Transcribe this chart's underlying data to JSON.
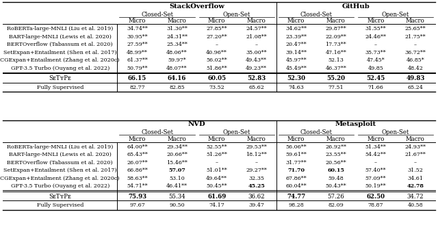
{
  "title1": "StackOverflow",
  "title2": "GitHub",
  "title3": "NVD",
  "title4": "Metasploit",
  "row_labels": [
    "RoBERTa-large-MNLI (Liu et al. 2019)",
    "BART-large-MNLI (Lewis et al. 2020)",
    "BERTOverflow (Tabassum et al. 2020)",
    "SetExpan+Entailment (Shen et al. 2017)",
    "CGExpan+Entailment (Zhang et al. 2020c)",
    "GPT-3.5 Turbo (Ouyang et al. 2022)"
  ],
  "table1_data": [
    [
      "34.74**",
      "31.30**",
      "27.85**",
      "24.57**",
      "34.62**",
      "29.87**",
      "31.55**",
      "25.65**"
    ],
    [
      "30.95**",
      "24.31**",
      "27.20**",
      "21.08**",
      "23.39**",
      "22.09**",
      "24.46**",
      "21.75**"
    ],
    [
      "27.59**",
      "25.34**",
      "–",
      "–",
      "20.47**",
      "17.73**",
      "–",
      "–"
    ],
    [
      "48.99**",
      "48.06**",
      "40.96**",
      "35.00**",
      "39.14**",
      "47.16**",
      "35.73**",
      "36.72**"
    ],
    [
      "61.37**",
      "59.97*",
      "56.02**",
      "49.43**",
      "45.97**",
      "52.13",
      "47.45*",
      "46.85*"
    ],
    [
      "50.79**",
      "48.07**",
      "51.86**",
      "49.23**",
      "45.49**",
      "46.37**",
      "49.85",
      "48.42"
    ]
  ],
  "table1_setype": [
    "66.15",
    "64.16",
    "60.05",
    "52.83",
    "52.30",
    "55.20",
    "52.45",
    "49.83"
  ],
  "table1_fullysup": [
    "82.77",
    "82.85",
    "73.52",
    "65.62",
    "74.63",
    "77.51",
    "71.66",
    "65.24"
  ],
  "table2_data": [
    [
      "64.00**",
      "29.34**",
      "52.55**",
      "29.53**",
      "56.06**",
      "26.92**",
      "51.34**",
      "24.93**"
    ],
    [
      "65.43**",
      "20.66**",
      "51.26**",
      "18.12**",
      "59.61**",
      "23.55**",
      "54.42**",
      "21.67**"
    ],
    [
      "26.07**",
      "15.46**",
      "–",
      "–",
      "31.77**",
      "20.56**",
      "–",
      "–"
    ],
    [
      "66.86**",
      "57.07",
      "51.01**",
      "29.27**",
      "71.70",
      "60.15",
      "57.40**",
      "31.52"
    ],
    [
      "58.63**",
      "53.10",
      "49.64**",
      "32.35",
      "67.86**",
      "59.48",
      "57.09**",
      "34.61"
    ],
    [
      "54.71**",
      "46.41**",
      "50.45**",
      "45.25",
      "60.04**",
      "50.43**",
      "50.19**",
      "42.78"
    ]
  ],
  "table2_setype": [
    "75.93",
    "55.34",
    "61.69",
    "36.62",
    "74.77",
    "57.26",
    "62.50",
    "34.72"
  ],
  "table2_fullysup": [
    "97.67",
    "90.50",
    "74.17",
    "39.47",
    "98.28",
    "82.09",
    "78.87",
    "40.58"
  ],
  "bold_setype_t1": [
    true,
    true,
    true,
    true,
    true,
    true,
    true,
    true
  ],
  "bold_setype_t2": [
    true,
    false,
    true,
    false,
    true,
    false,
    true,
    false
  ],
  "bold_t1_cells": {},
  "bold_t2_cells": {
    "3,1": true,
    "5,3": true,
    "3,4": true,
    "3,5": true,
    "5,7": true
  }
}
